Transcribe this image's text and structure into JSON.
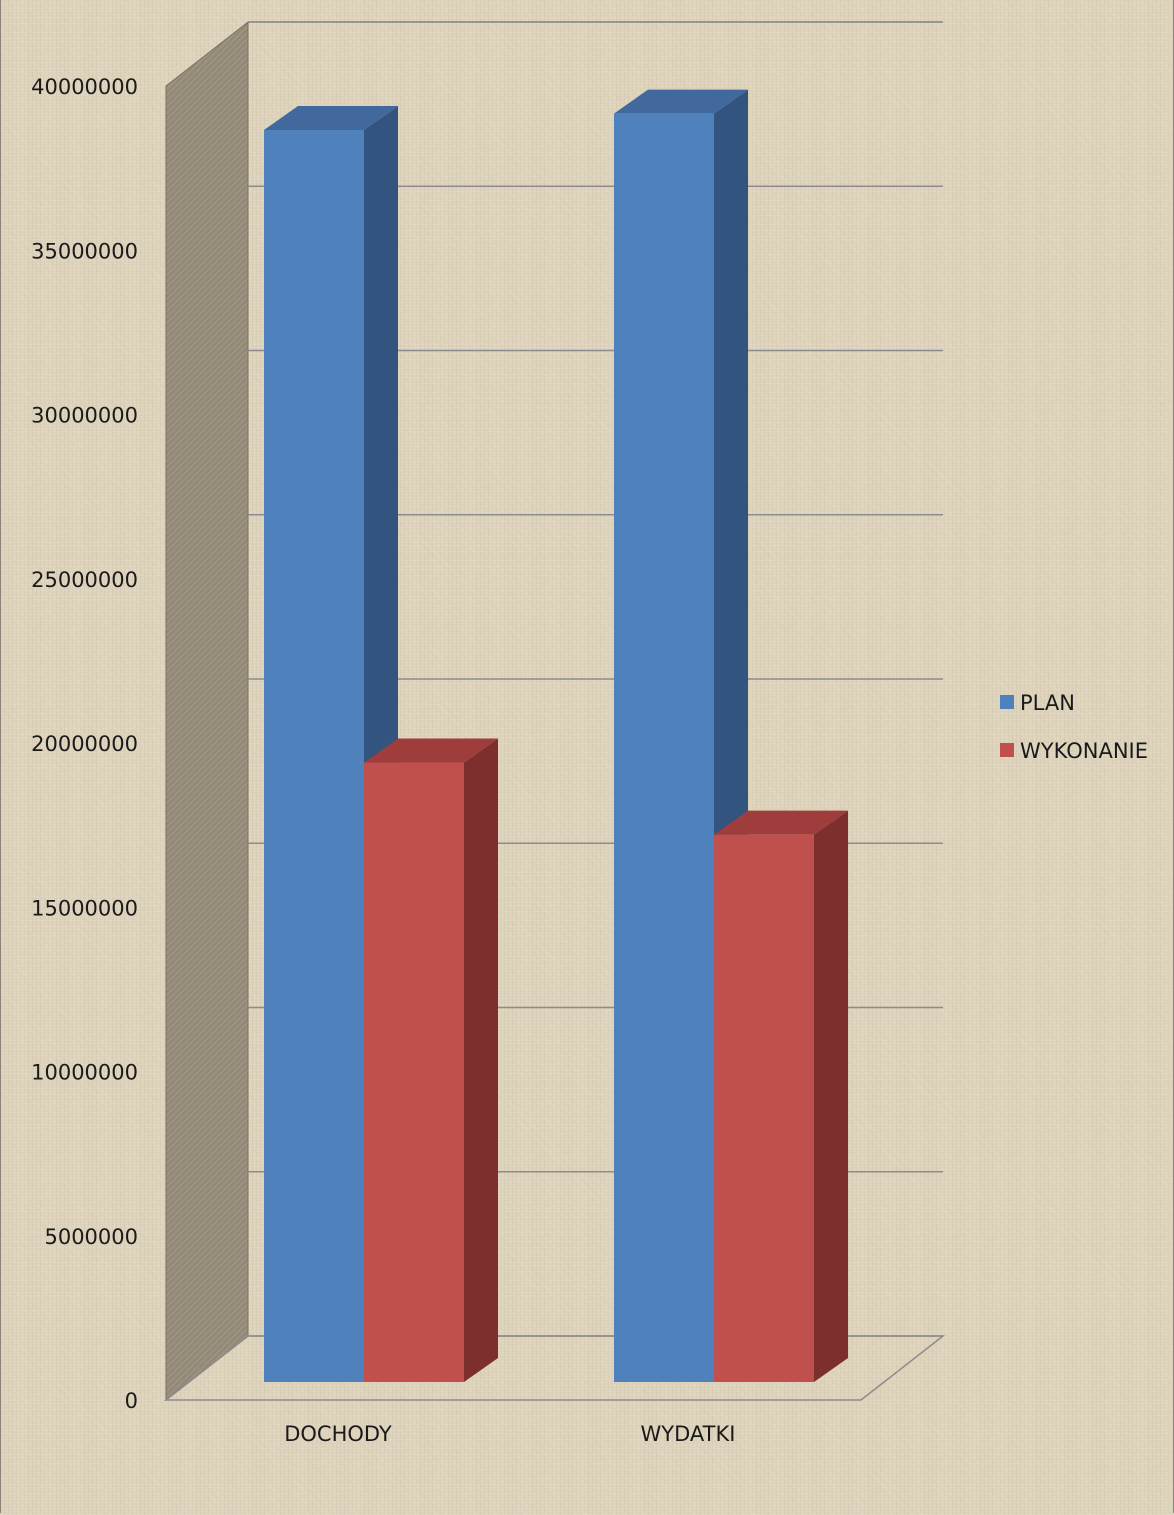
{
  "chart_data": {
    "type": "bar",
    "categories": [
      "DOCHODY",
      "WYDATKI"
    ],
    "series": [
      {
        "name": "PLAN",
        "color": "#4f81bd",
        "side_color": "#345480",
        "top_color": "#41699d",
        "values": [
          38200000,
          38700000
        ]
      },
      {
        "name": "WYKONANIE",
        "color": "#c0504d",
        "side_color": "#7d2f2e",
        "top_color": "#9e3d3b",
        "values": [
          18900000,
          16700000
        ]
      }
    ],
    "ylim": [
      0,
      40000000
    ],
    "yticks": [
      0,
      5000000,
      10000000,
      15000000,
      20000000,
      25000000,
      30000000,
      35000000,
      40000000
    ],
    "ytick_labels": [
      "0",
      "5000000",
      "10000000",
      "15000000",
      "20000000",
      "25000000",
      "30000000",
      "35000000",
      "40000000"
    ],
    "grid": true,
    "legend_position": "right",
    "three_d": true
  }
}
